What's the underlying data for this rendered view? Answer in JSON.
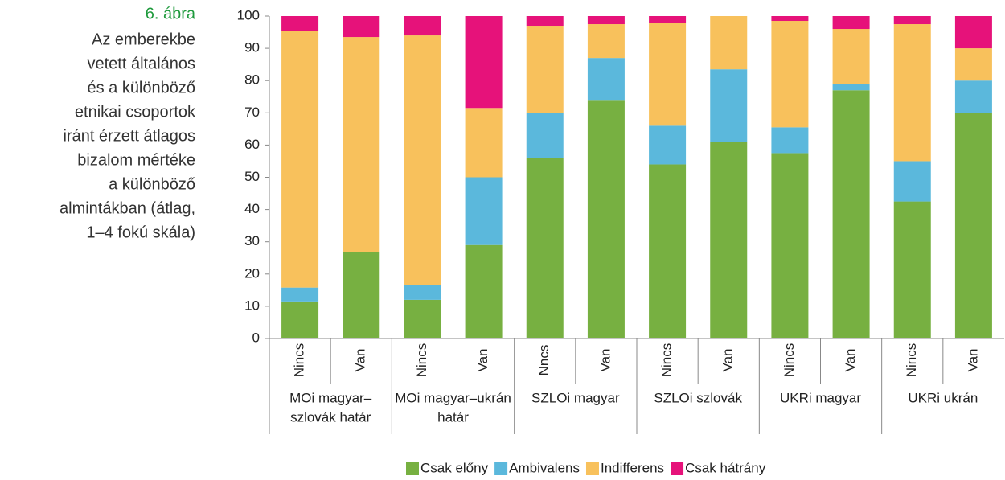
{
  "caption": {
    "title": "6. ábra",
    "lines": [
      "Az emberekbe",
      "vetett általános",
      "és a különböző",
      "etnikai csoportok",
      "iránt érzett átlagos",
      "bizalom mértéke",
      "a különböző",
      "almintákban (átlag,",
      "1–4 fokú skála)"
    ]
  },
  "chart_data": {
    "type": "stacked-bar",
    "categories": [
      "Nincs",
      "Van",
      "Nincs",
      "Van",
      "Nncs",
      "Van",
      "Nincs",
      "Van",
      "Nincs",
      "Van",
      "Nincs",
      "Van"
    ],
    "groups": [
      [
        "MOi magyar–",
        "szlovák határ"
      ],
      [
        "MOi magyar–ukrán",
        "határ"
      ],
      [
        "SZLOi magyar"
      ],
      [
        "SZLOi szlovák"
      ],
      [
        "UKRi magyar"
      ],
      [
        "UKRi ukrán"
      ]
    ],
    "series": [
      {
        "name": "Csak előny",
        "color": "#77b041",
        "values": [
          11.5,
          26.8,
          12,
          29,
          56,
          74,
          54,
          61,
          57.5,
          77,
          42.5,
          70
        ]
      },
      {
        "name": "Ambivalens",
        "color": "#5bb8dc",
        "values": [
          4.3,
          0,
          4.5,
          21,
          14,
          13,
          12,
          22.5,
          8,
          2,
          12.5,
          10
        ]
      },
      {
        "name": "Indifferens",
        "color": "#f8c15c",
        "values": [
          79.7,
          66.7,
          77.5,
          21.5,
          27,
          10.5,
          32,
          16.5,
          33,
          17,
          42.5,
          10
        ]
      },
      {
        "name": "Csak hátrány",
        "color": "#e6127a",
        "values": [
          4.5,
          6.5,
          6,
          28.5,
          3,
          2.5,
          2,
          0,
          1.5,
          4,
          2.5,
          10
        ]
      }
    ],
    "ylim": [
      0,
      100
    ],
    "yticks": [
      0,
      10,
      20,
      30,
      40,
      50,
      60,
      70,
      80,
      90,
      100
    ],
    "legend": "bottom"
  }
}
